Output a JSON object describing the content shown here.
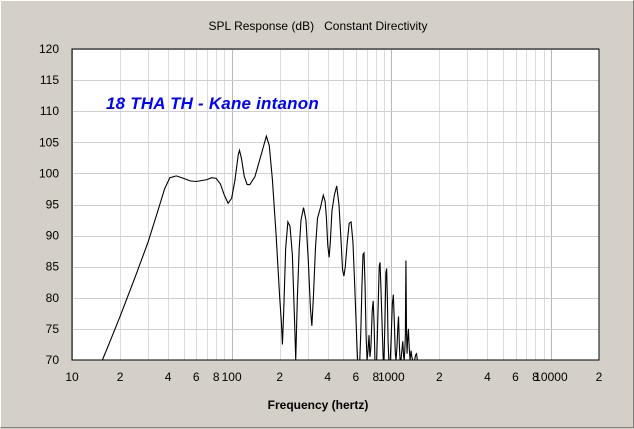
{
  "chart_data": {
    "type": "line",
    "title": "SPL Response (dB)   Constant Directivity",
    "xlabel": "Frequency (hertz)",
    "ylabel": "",
    "x_scale": "log",
    "xlim": [
      10,
      20000
    ],
    "ylim": [
      70,
      120
    ],
    "y_ticks": [
      70,
      75,
      80,
      85,
      90,
      95,
      100,
      105,
      110,
      115,
      120
    ],
    "x_ticks": [
      {
        "value": 10,
        "label": "10"
      },
      {
        "value": 20,
        "label": "2"
      },
      {
        "value": 40,
        "label": "4"
      },
      {
        "value": 60,
        "label": "6"
      },
      {
        "value": 80,
        "label": "8"
      },
      {
        "value": 100,
        "label": "100"
      },
      {
        "value": 200,
        "label": "2"
      },
      {
        "value": 400,
        "label": "4"
      },
      {
        "value": 600,
        "label": "6"
      },
      {
        "value": 800,
        "label": "8"
      },
      {
        "value": 1000,
        "label": "1000"
      },
      {
        "value": 2000,
        "label": "2"
      },
      {
        "value": 4000,
        "label": "4"
      },
      {
        "value": 6000,
        "label": "6"
      },
      {
        "value": 8000,
        "label": "8"
      },
      {
        "value": 10000,
        "label": "10000"
      },
      {
        "value": 20000,
        "label": "2"
      }
    ],
    "grid": true,
    "annotation": "18 THA TH - Kane intanon",
    "line_color": "#000000",
    "annotation_color": "#0000ff",
    "series": [
      {
        "points": [
          [
            15.5,
            70
          ],
          [
            17,
            72.5
          ],
          [
            20,
            77
          ],
          [
            25,
            83.5
          ],
          [
            30,
            89
          ],
          [
            35,
            94.5
          ],
          [
            38,
            97.5
          ],
          [
            41,
            99.3
          ],
          [
            45,
            99.6
          ],
          [
            50,
            99.2
          ],
          [
            55,
            98.8
          ],
          [
            60,
            98.7
          ],
          [
            70,
            99
          ],
          [
            75,
            99.3
          ],
          [
            80,
            99.2
          ],
          [
            85,
            98.3
          ],
          [
            90,
            96.5
          ],
          [
            95,
            95.2
          ],
          [
            100,
            96
          ],
          [
            105,
            99
          ],
          [
            110,
            103
          ],
          [
            112,
            103.7
          ],
          [
            115,
            102.5
          ],
          [
            120,
            99.5
          ],
          [
            125,
            98.2
          ],
          [
            130,
            98.2
          ],
          [
            140,
            99.5
          ],
          [
            155,
            103.5
          ],
          [
            165,
            106
          ],
          [
            172,
            104.5
          ],
          [
            180,
            99
          ],
          [
            190,
            90
          ],
          [
            200,
            80
          ],
          [
            205,
            76
          ],
          [
            208,
            72.5
          ],
          [
            212,
            78
          ],
          [
            218,
            88
          ],
          [
            225,
            92.2
          ],
          [
            232,
            91.5
          ],
          [
            240,
            87
          ],
          [
            245,
            80
          ],
          [
            248,
            76
          ],
          [
            252,
            70
          ],
          [
            258,
            80
          ],
          [
            265,
            88
          ],
          [
            272,
            92.5
          ],
          [
            282,
            94.5
          ],
          [
            292,
            92.5
          ],
          [
            302,
            86
          ],
          [
            312,
            78
          ],
          [
            318,
            75.5
          ],
          [
            325,
            80
          ],
          [
            335,
            88
          ],
          [
            345,
            92.8
          ],
          [
            360,
            94.5
          ],
          [
            375,
            96.5
          ],
          [
            385,
            95.5
          ],
          [
            392,
            93
          ],
          [
            400,
            88.5
          ],
          [
            408,
            86.5
          ],
          [
            415,
            89
          ],
          [
            425,
            94
          ],
          [
            440,
            96.5
          ],
          [
            455,
            98
          ],
          [
            470,
            95
          ],
          [
            485,
            89
          ],
          [
            495,
            84.5
          ],
          [
            505,
            83.5
          ],
          [
            515,
            85
          ],
          [
            530,
            89
          ],
          [
            545,
            92
          ],
          [
            560,
            92.2
          ],
          [
            575,
            89
          ],
          [
            590,
            82
          ],
          [
            600,
            77
          ],
          [
            610,
            72
          ],
          [
            615,
            70
          ],
          [
            635,
            70
          ],
          [
            645,
            75
          ],
          [
            655,
            82
          ],
          [
            665,
            87
          ],
          [
            675,
            87.2
          ],
          [
            685,
            82
          ],
          [
            695,
            74
          ],
          [
            705,
            70
          ],
          [
            715,
            71.5
          ],
          [
            725,
            74
          ],
          [
            735,
            70.5
          ],
          [
            745,
            72
          ],
          [
            760,
            78
          ],
          [
            770,
            79.5
          ],
          [
            780,
            76
          ],
          [
            790,
            70
          ],
          [
            810,
            70
          ],
          [
            820,
            75
          ],
          [
            830,
            80
          ],
          [
            840,
            85
          ],
          [
            850,
            85.7
          ],
          [
            860,
            82
          ],
          [
            870,
            78
          ],
          [
            880,
            74
          ],
          [
            890,
            70
          ],
          [
            900,
            70
          ],
          [
            912,
            76
          ],
          [
            925,
            84
          ],
          [
            935,
            84.7
          ],
          [
            945,
            80
          ],
          [
            955,
            73
          ],
          [
            965,
            70
          ],
          [
            985,
            70
          ],
          [
            1000,
            74
          ],
          [
            1015,
            79
          ],
          [
            1030,
            80.5
          ],
          [
            1045,
            76
          ],
          [
            1060,
            71
          ],
          [
            1070,
            70
          ],
          [
            1085,
            72
          ],
          [
            1100,
            75.5
          ],
          [
            1110,
            77
          ],
          [
            1125,
            72
          ],
          [
            1135,
            70
          ],
          [
            1150,
            70
          ],
          [
            1165,
            71.5
          ],
          [
            1180,
            73
          ],
          [
            1195,
            70.5
          ],
          [
            1205,
            70
          ],
          [
            1215,
            71.5
          ],
          [
            1225,
            74
          ],
          [
            1235,
            86
          ],
          [
            1245,
            75
          ],
          [
            1255,
            71
          ],
          [
            1265,
            73
          ],
          [
            1280,
            75
          ],
          [
            1295,
            72
          ],
          [
            1310,
            70
          ],
          [
            1330,
            71.5
          ],
          [
            1345,
            70.5
          ],
          [
            1360,
            70
          ],
          [
            1400,
            70
          ],
          [
            1420,
            70.8
          ],
          [
            1440,
            71
          ],
          [
            1455,
            70
          ]
        ]
      }
    ]
  }
}
